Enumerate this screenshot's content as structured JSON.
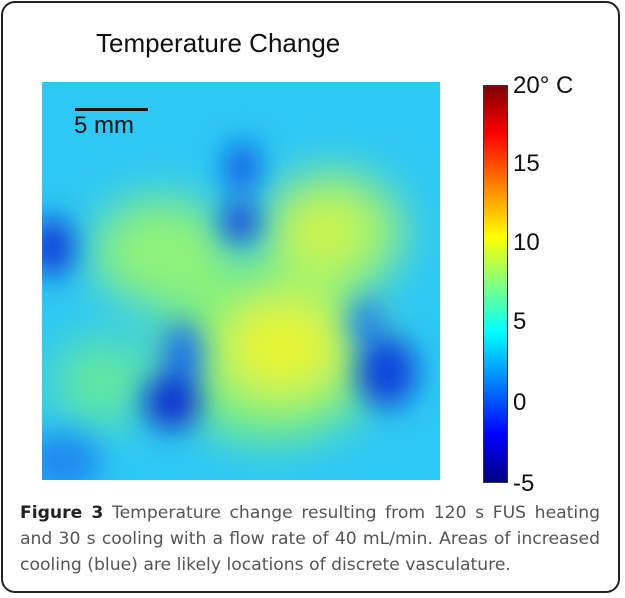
{
  "figure": {
    "title": "Temperature Change",
    "scale_bar_label": "5 mm",
    "colorbar_ticks": [
      "20° C",
      "15",
      "10",
      "5",
      "0",
      "-5"
    ]
  },
  "caption": {
    "label": "Figure 3",
    "text": "Temperature change resulting from 120 s FUS heating and 30 s cooling with a flow rate of 40 mL/min. Areas of increased cooling (blue) are likely locations of discrete vasculature."
  },
  "chart_data": {
    "type": "heatmap",
    "title": "Temperature Change",
    "colorbar": {
      "min": -5,
      "max": 20,
      "unit": "° C",
      "ticks": [
        20,
        15,
        10,
        5,
        0,
        -5
      ]
    },
    "colormap": "jet",
    "background_value": 3,
    "scale_bar": "5 mm",
    "features": [
      {
        "region": "center",
        "value": 10
      },
      {
        "region": "upper-center-left",
        "value": 7.5
      },
      {
        "region": "upper-right",
        "value": 8
      },
      {
        "region": "lower-left",
        "value": 5.5
      },
      {
        "region": "top-center",
        "value": -1
      },
      {
        "region": "left-edge",
        "value": -1
      },
      {
        "region": "lower-center-left",
        "value": -1.5
      },
      {
        "region": "lower-right",
        "value": -1.5
      },
      {
        "region": "bottom-left",
        "value": 2
      }
    ]
  }
}
